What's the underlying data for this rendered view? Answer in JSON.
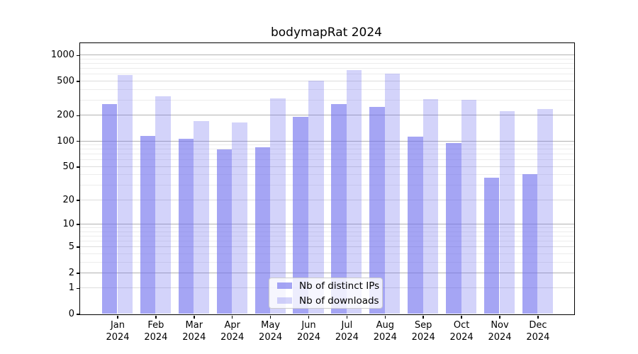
{
  "title": "bodymapRat 2024",
  "chart_data": {
    "type": "bar",
    "title": "bodymapRat 2024",
    "categories": [
      "Jan",
      "Feb",
      "Mar",
      "Apr",
      "May",
      "Jun",
      "Jul",
      "Aug",
      "Sep",
      "Oct",
      "Nov",
      "Dec"
    ],
    "x_tick_labels": [
      {
        "month": "Jan",
        "year": "2024"
      },
      {
        "month": "Feb",
        "year": "2024"
      },
      {
        "month": "Mar",
        "year": "2024"
      },
      {
        "month": "Apr",
        "year": "2024"
      },
      {
        "month": "May",
        "year": "2024"
      },
      {
        "month": "Jun",
        "year": "2024"
      },
      {
        "month": "Jul",
        "year": "2024"
      },
      {
        "month": "Aug",
        "year": "2024"
      },
      {
        "month": "Sep",
        "year": "2024"
      },
      {
        "month": "Oct",
        "year": "2024"
      },
      {
        "month": "Nov",
        "year": "2024"
      },
      {
        "month": "Dec",
        "year": "2024"
      }
    ],
    "series": [
      {
        "name": "Nb of distinct IPs",
        "key": "distinct-ips",
        "values": [
          270,
          115,
          106,
          80,
          84,
          193,
          270,
          250,
          113,
          95,
          37,
          41
        ],
        "color": "#6e6eed",
        "alpha": 0.62
      },
      {
        "name": "Nb of downloads",
        "key": "downloads",
        "values": [
          585,
          330,
          172,
          165,
          315,
          500,
          670,
          610,
          307,
          300,
          222,
          237
        ],
        "color": "#6e6eed",
        "alpha": 0.3
      }
    ],
    "yscale": "log1p",
    "ylim": [
      0,
      1000
    ],
    "yticks": [
      0,
      1,
      2,
      5,
      10,
      20,
      50,
      100,
      200,
      500,
      1000
    ],
    "ytick_labels": [
      "0",
      "1",
      "2",
      "5",
      "10",
      "20",
      "50",
      "100",
      "200",
      "500",
      "1000"
    ],
    "minor_gridlines": [
      3,
      4,
      6,
      7,
      8,
      9,
      30,
      40,
      60,
      70,
      80,
      90,
      300,
      400,
      600,
      700,
      800,
      900
    ],
    "emphasized_gridlines": [
      2,
      10,
      100,
      200,
      1000
    ],
    "grid": true,
    "legend_position": "inside-bottom-center",
    "xlabel": "",
    "ylabel": ""
  },
  "legend": {
    "items": [
      {
        "label": "Nb of distinct IPs"
      },
      {
        "label": "Nb of downloads"
      }
    ]
  },
  "colors": {
    "bar_base": "#6e6eed",
    "gridline_major_emphasized": "#b2b2b2",
    "gridline_major": "#dcdcdc",
    "gridline_minor": "#ececec",
    "spine": "#000000",
    "legend_border": "#cccccc",
    "background": "#ffffff"
  }
}
